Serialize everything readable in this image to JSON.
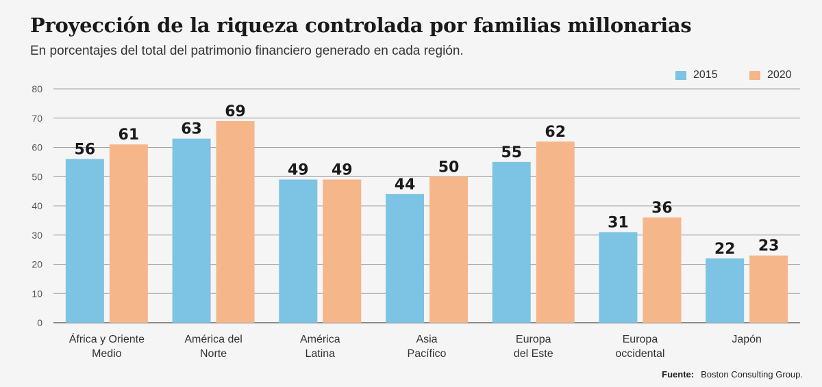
{
  "chart_data": {
    "type": "bar",
    "title": "Proyección de la riqueza controlada por familias millonarias",
    "subtitle": "En porcentajes del total del patrimonio financiero generado en cada región.",
    "categories": [
      [
        "África y Oriente",
        "Medio"
      ],
      [
        "América del",
        "Norte"
      ],
      [
        "América",
        "Latina"
      ],
      [
        "Asia",
        "Pacífico"
      ],
      [
        "Europa",
        "del Este"
      ],
      [
        "Europa",
        "occidental"
      ],
      [
        "Japón"
      ]
    ],
    "series": [
      {
        "name": "2015",
        "color": "#7cc3e4",
        "values": [
          56,
          63,
          49,
          44,
          55,
          31,
          22
        ]
      },
      {
        "name": "2020",
        "color": "#f5b68a",
        "values": [
          61,
          69,
          49,
          50,
          62,
          36,
          23
        ]
      }
    ],
    "ylim": [
      0,
      80
    ],
    "yticks": [
      0,
      10,
      20,
      30,
      40,
      50,
      60,
      70,
      80
    ],
    "grid": true,
    "legend": "top-right"
  },
  "source": {
    "label": "Fuente:",
    "text": "Boston Consulting Group."
  }
}
